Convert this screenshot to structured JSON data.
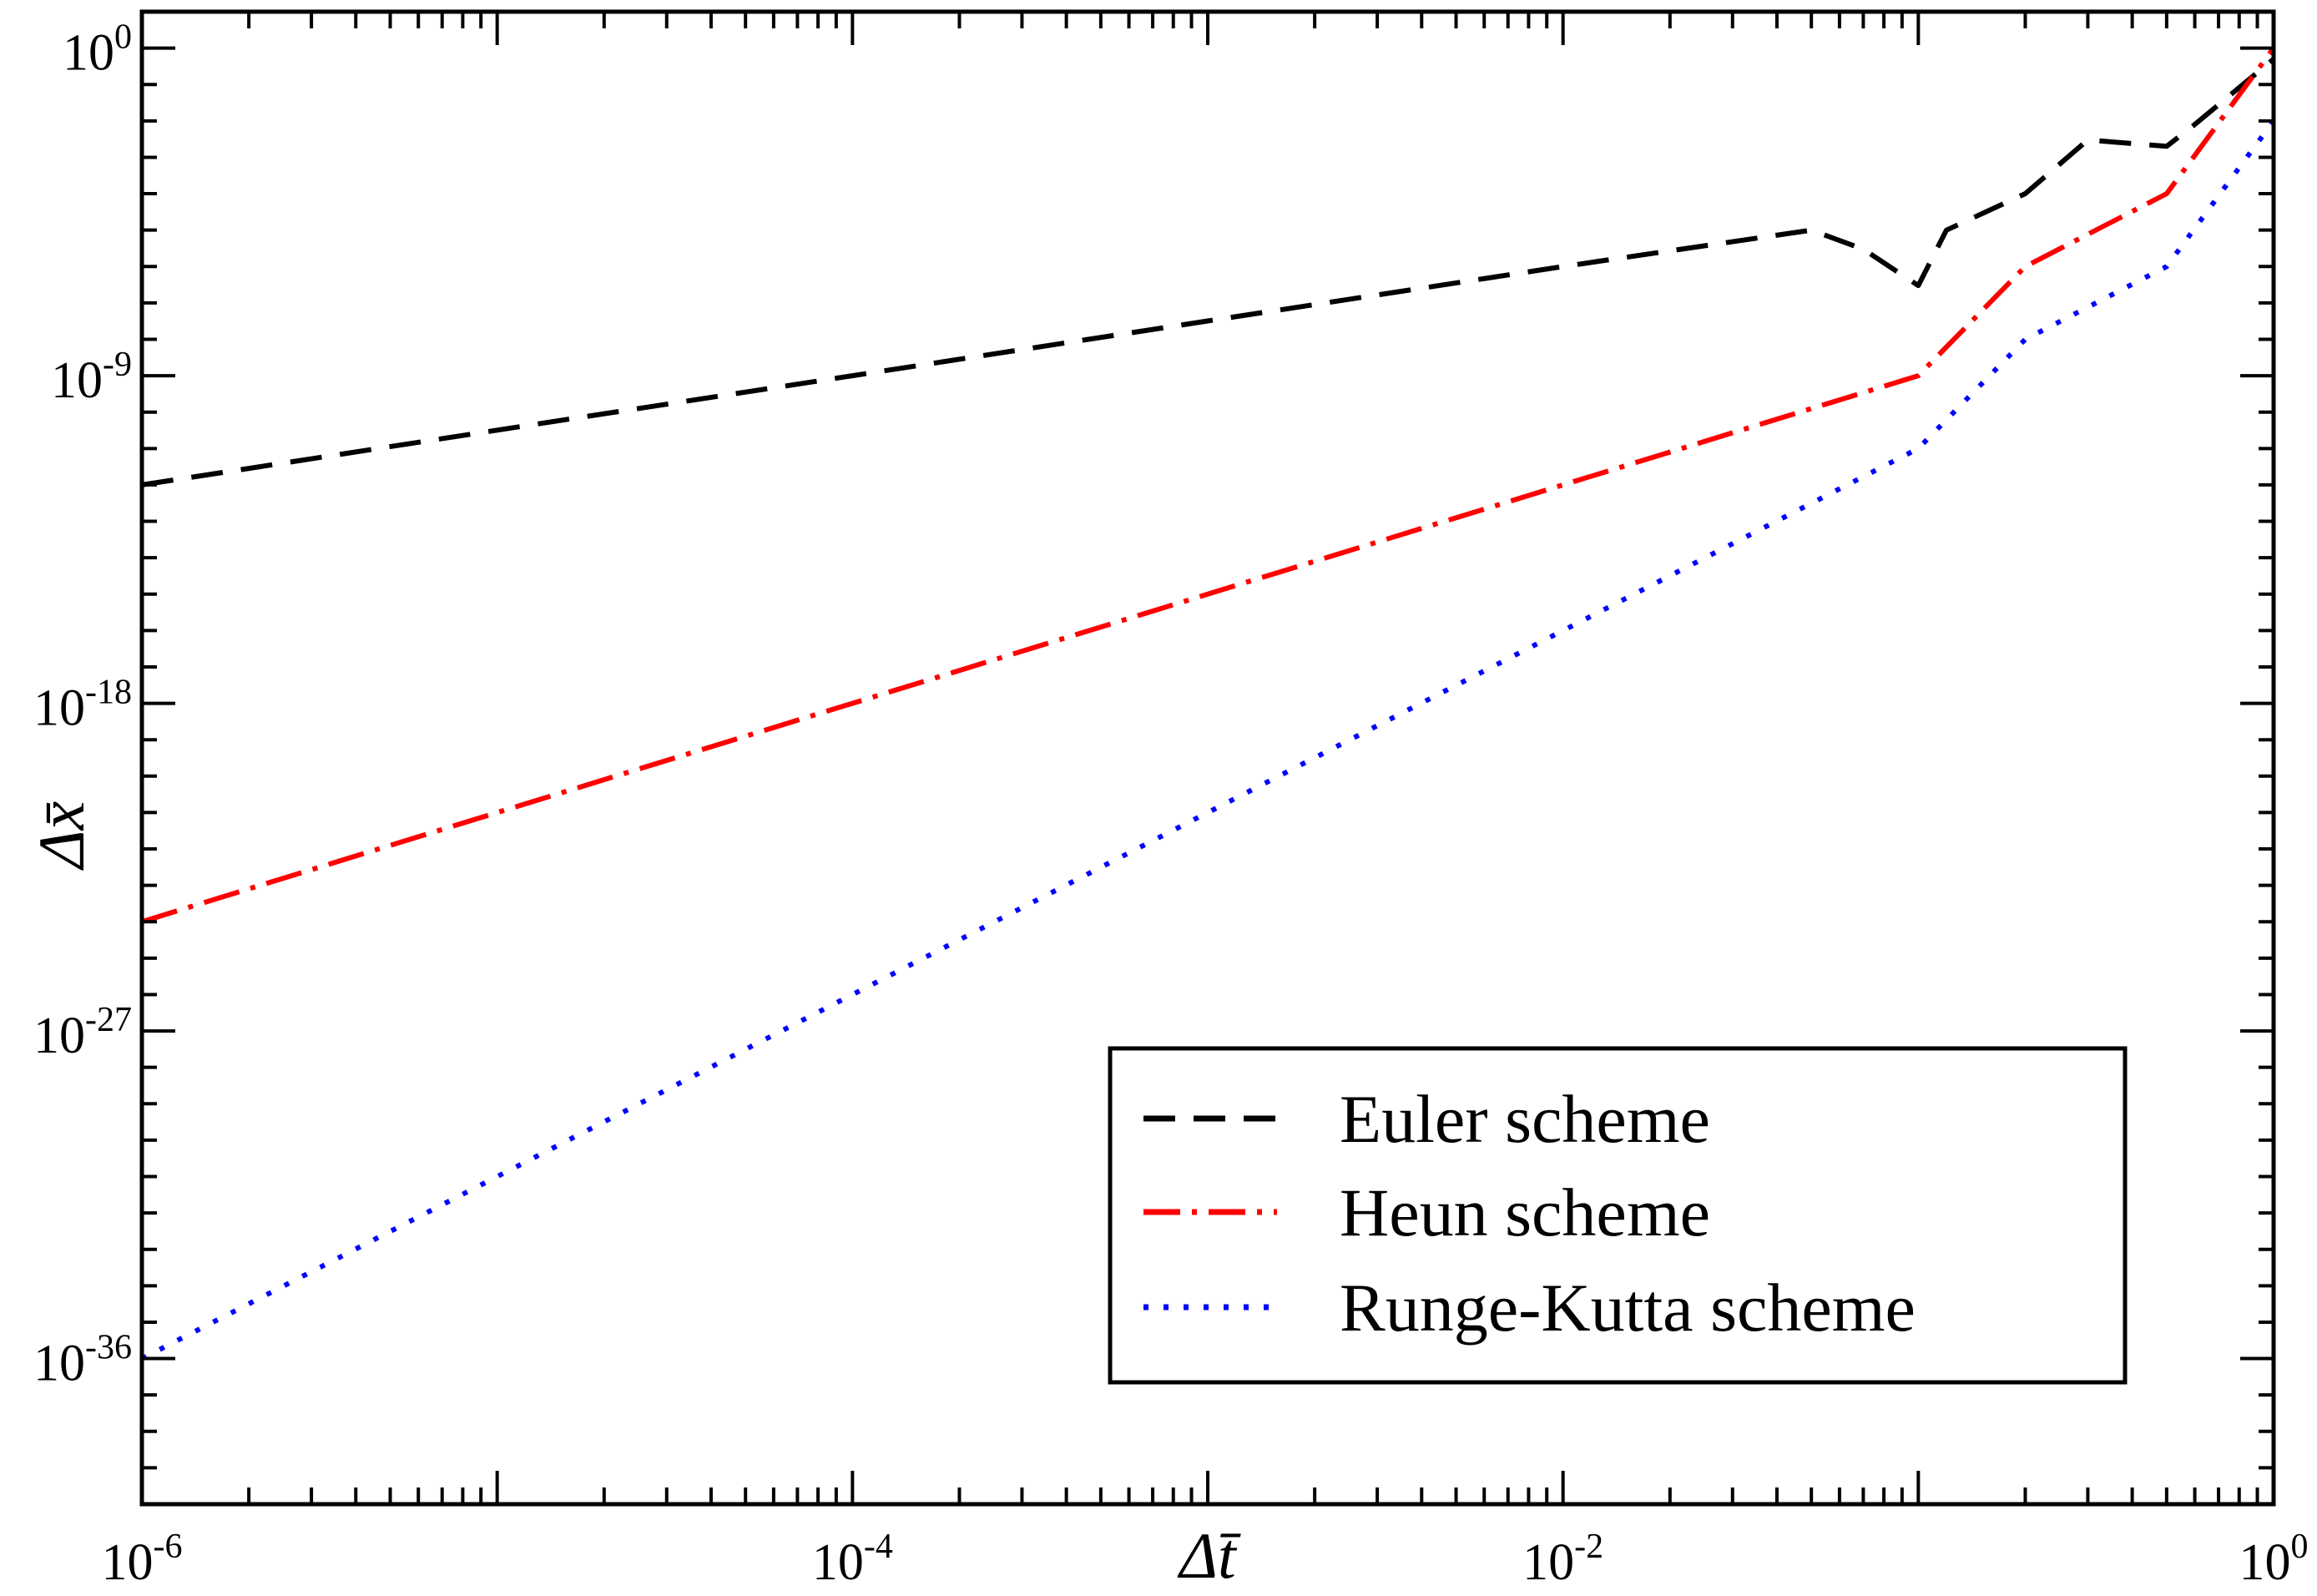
{
  "chart_data": {
    "type": "line",
    "xscale": "log",
    "yscale": "log",
    "xlim": [
      1e-06,
      1
    ],
    "ylim": [
      1e-40,
      10.0
    ],
    "x_ticks": [
      {
        "value": 1e-06,
        "base": "10",
        "exp": "-6"
      },
      {
        "value": 0.0001,
        "base": "10",
        "exp": "-4"
      },
      {
        "value": 0.01,
        "base": "10",
        "exp": "-2"
      },
      {
        "value": 1,
        "base": "10",
        "exp": "0"
      }
    ],
    "y_ticks": [
      {
        "value": 1,
        "base": "10",
        "exp": "0"
      },
      {
        "value": 1e-09,
        "base": "10",
        "exp": "-9"
      },
      {
        "value": 1e-18,
        "base": "10",
        "exp": "-18"
      },
      {
        "value": 1e-27,
        "base": "10",
        "exp": "-27"
      },
      {
        "value": 1e-36,
        "base": "10",
        "exp": "-36"
      }
    ],
    "xlabel": "Δt̄",
    "ylabel": "Δx̄",
    "grid": false,
    "legend_position": "bottom-right",
    "series": [
      {
        "name": "Euler scheme",
        "color": "#000000",
        "dash": "dashed",
        "x": [
          1e-06,
          1e-05,
          0.0001,
          0.001,
          0.01,
          0.05,
          0.07,
          0.1,
          0.12,
          0.2,
          0.3,
          0.5,
          0.6,
          1
        ],
        "y": [
          1e-12,
          3.2e-11,
          1e-09,
          3.2e-08,
          1e-06,
          1e-05,
          3e-06,
          3e-07,
          1e-05,
          0.0001,
          0.003,
          0.002,
          0.008,
          0.5
        ]
      },
      {
        "name": "Heun scheme",
        "color": "#ff0000",
        "dash": "dash-dot",
        "x": [
          1e-06,
          1e-05,
          0.0001,
          0.001,
          0.01,
          0.1,
          0.2,
          0.5,
          1
        ],
        "y": [
          1e-24,
          1e-21,
          1e-18,
          1e-15,
          1e-12,
          1e-09,
          1e-06,
          0.0001,
          1
        ]
      },
      {
        "name": "Runge-Kutta scheme",
        "color": "#0000ff",
        "dash": "dotted",
        "x": [
          1e-06,
          1e-05,
          0.0001,
          0.001,
          0.01,
          0.1,
          0.2,
          0.5,
          1
        ],
        "y": [
          1e-36,
          1e-31,
          1e-26,
          1e-21,
          1e-16,
          1e-11,
          1e-08,
          1e-06,
          0.01
        ]
      }
    ]
  }
}
